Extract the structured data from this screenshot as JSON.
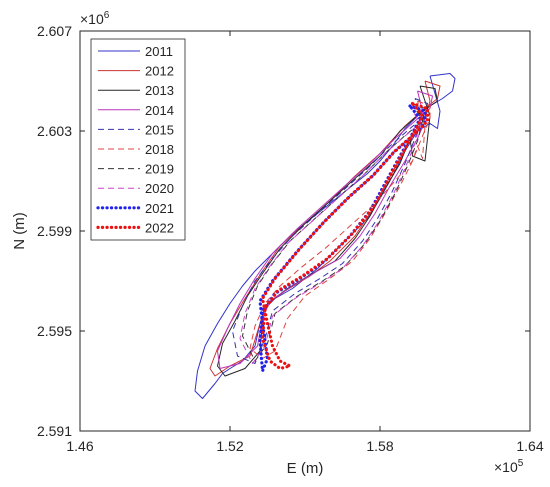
{
  "chart_data": {
    "type": "line",
    "xlabel": "E (m)",
    "ylabel": "N (m)",
    "xlim": [
      146000,
      164000
    ],
    "ylim": [
      2591000,
      2607000
    ],
    "x_ticks": [
      146000,
      152000,
      158000,
      164000
    ],
    "x_tick_labels": [
      "1.46",
      "1.52",
      "1.58",
      "1.64"
    ],
    "y_ticks": [
      2591000,
      2595000,
      2599000,
      2603000,
      2607000
    ],
    "y_tick_labels": [
      "2.591",
      "2.595",
      "2.599",
      "2.603",
      "2.607"
    ],
    "x_multiplier": "×10",
    "x_multiplier_exp": "5",
    "y_multiplier": "×10",
    "y_multiplier_exp": "6",
    "grid": false,
    "legend_position": "top-left",
    "series": [
      {
        "name": "2011",
        "color": "#3333cc",
        "style": "solid",
        "x": [
          160000,
          160800,
          161000,
          160900,
          160500,
          160000,
          159500,
          159000,
          158500,
          158000,
          157500,
          157000,
          156500,
          156000,
          155500,
          155000,
          154500,
          154000,
          153500,
          153000,
          152500,
          152000,
          151500,
          151000,
          150700,
          150600,
          150900,
          151400,
          151700,
          152000,
          152500,
          153000,
          153200,
          153400,
          153800,
          154500,
          155000,
          155500,
          156000,
          156500,
          157000,
          157500,
          158000,
          158500,
          159000,
          159500,
          160000,
          160300,
          160400,
          160000
        ],
        "y": [
          2605200,
          2605300,
          2605100,
          2604600,
          2604300,
          2604000,
          2603600,
          2603100,
          2602400,
          2601800,
          2601300,
          2600900,
          2600500,
          2600100,
          2599700,
          2599300,
          2598900,
          2598400,
          2597900,
          2597400,
          2596800,
          2596100,
          2595300,
          2594400,
          2593400,
          2592600,
          2592300,
          2592900,
          2593300,
          2593500,
          2593800,
          2594400,
          2595300,
          2595900,
          2596300,
          2596700,
          2597100,
          2597500,
          2598000,
          2598500,
          2599000,
          2599500,
          2600300,
          2601200,
          2602200,
          2603000,
          2603300,
          2603100,
          2603800,
          2605200
        ]
      },
      {
        "name": "2012",
        "color": "#cc3333",
        "style": "solid",
        "x": [
          159800,
          160400,
          160300,
          159800,
          159000,
          158000,
          157000,
          156000,
          155000,
          154000,
          153300,
          152600,
          152000,
          151500,
          151200,
          151400,
          152000,
          152800,
          153200,
          153400,
          154200,
          155200,
          156000,
          157000,
          157600,
          158200,
          158800,
          159300,
          159800,
          160000,
          159800
        ],
        "y": [
          2605000,
          2604800,
          2604300,
          2603900,
          2603200,
          2602100,
          2601200,
          2600200,
          2599300,
          2598400,
          2597400,
          2596300,
          2595300,
          2594300,
          2593500,
          2593200,
          2593600,
          2594000,
          2595300,
          2596000,
          2596600,
          2597200,
          2597800,
          2598800,
          2599700,
          2600800,
          2601900,
          2602900,
          2603500,
          2604200,
          2605000
        ]
      },
      {
        "name": "2013",
        "color": "#262626",
        "style": "solid",
        "x": [
          159600,
          160200,
          160300,
          159700,
          158800,
          158000,
          157000,
          156000,
          155000,
          154000,
          153300,
          152700,
          152200,
          151700,
          151500,
          151800,
          152600,
          153200,
          153300,
          153500,
          154300,
          155300,
          156200,
          157000,
          157600,
          158200,
          158800,
          159200,
          159300,
          159800,
          160000,
          159600
        ],
        "y": [
          2604800,
          2604700,
          2604200,
          2603800,
          2603000,
          2602000,
          2601100,
          2600200,
          2599300,
          2598300,
          2597300,
          2596400,
          2595400,
          2594500,
          2593600,
          2593200,
          2593500,
          2594200,
          2595400,
          2596100,
          2596700,
          2597300,
          2597800,
          2598700,
          2599600,
          2600700,
          2601700,
          2602700,
          2602000,
          2601800,
          2603600,
          2604800
        ]
      },
      {
        "name": "2014",
        "color": "#bb33bb",
        "style": "solid",
        "x": [
          159500,
          160100,
          160000,
          159400,
          158600,
          157700,
          156700,
          155700,
          154700,
          153700,
          153000,
          152400,
          151900,
          151500,
          151600,
          152400,
          153100,
          153300,
          153600,
          154500,
          155500,
          156400,
          157200,
          157800,
          158400,
          159000,
          159500,
          159800,
          159500
        ],
        "y": [
          2604600,
          2604400,
          2603900,
          2603400,
          2602700,
          2601800,
          2600900,
          2600000,
          2599100,
          2598100,
          2597100,
          2596100,
          2595100,
          2594200,
          2593500,
          2593700,
          2594400,
          2595500,
          2596200,
          2596800,
          2597400,
          2597900,
          2598800,
          2599700,
          2600800,
          2601800,
          2602700,
          2603400,
          2604600
        ]
      },
      {
        "name": "2015",
        "color": "#3333aa",
        "style": "dashed",
        "x": [
          159400,
          159900,
          159800,
          159200,
          158400,
          157500,
          156500,
          155500,
          154500,
          153700,
          153000,
          152500,
          152100,
          152300,
          153000,
          153400,
          153700,
          154600,
          155600,
          156500,
          157300,
          157900,
          158500,
          159000,
          159400,
          159700,
          159400
        ],
        "y": [
          2604300,
          2604100,
          2603600,
          2603100,
          2602400,
          2601500,
          2600600,
          2599700,
          2598800,
          2597900,
          2597000,
          2596000,
          2595000,
          2594000,
          2593700,
          2594700,
          2595800,
          2596500,
          2597100,
          2597700,
          2598600,
          2599500,
          2600600,
          2601700,
          2602700,
          2603500,
          2604300
        ]
      },
      {
        "name": "2018",
        "color": "#dd4444",
        "style": "dashed",
        "x": [
          159500,
          160000,
          160000,
          159700,
          159300,
          158600,
          157800,
          156800,
          155800,
          154800,
          154000,
          153400,
          153000,
          152800,
          153300,
          153800,
          154300,
          155000,
          156000,
          156900,
          157600,
          158200,
          158800,
          159300,
          159500,
          159700,
          159800,
          159500
        ],
        "y": [
          2604200,
          2604000,
          2603500,
          2602800,
          2601800,
          2601000,
          2600100,
          2599200,
          2598300,
          2597500,
          2596800,
          2596100,
          2595200,
          2594300,
          2593900,
          2594200,
          2595500,
          2596400,
          2597100,
          2597800,
          2598700,
          2599700,
          2600800,
          2601800,
          2602400,
          2601900,
          2603200,
          2604200
        ]
      },
      {
        "name": "2019",
        "color": "#333333",
        "style": "dashed",
        "x": [
          159300,
          159800,
          159700,
          159100,
          158300,
          157400,
          156400,
          155400,
          154400,
          153700,
          153100,
          152700,
          152500,
          153000,
          153500,
          153800,
          154700,
          155700,
          156600,
          157400,
          158000,
          158600,
          159100,
          159500,
          159700,
          159300
        ],
        "y": [
          2604100,
          2603900,
          2603400,
          2602900,
          2602200,
          2601300,
          2600400,
          2599500,
          2598600,
          2597700,
          2596800,
          2595800,
          2594800,
          2593800,
          2594500,
          2595700,
          2596400,
          2597000,
          2597600,
          2598500,
          2599400,
          2600500,
          2601600,
          2602600,
          2603400,
          2604100
        ]
      },
      {
        "name": "2020",
        "color": "#cc44cc",
        "style": "dashed",
        "x": [
          159200,
          159700,
          159600,
          159000,
          158200,
          157300,
          156300,
          155300,
          154300,
          153600,
          153000,
          152600,
          152400,
          152900,
          153400,
          153700,
          154600,
          155600,
          156500,
          157300,
          157900,
          158500,
          159000,
          159400,
          159600,
          159200
        ],
        "y": [
          2604000,
          2603800,
          2603300,
          2602800,
          2602100,
          2601200,
          2600300,
          2599400,
          2598500,
          2597600,
          2596700,
          2595700,
          2594700,
          2593700,
          2594400,
          2595600,
          2596300,
          2596900,
          2597500,
          2598400,
          2599300,
          2600400,
          2601500,
          2602500,
          2603300,
          2604000
        ]
      },
      {
        "name": "2021",
        "color": "#2222ee",
        "style": "dotted",
        "x": [
          159200,
          159800,
          159800,
          159300,
          158500,
          157700,
          156700,
          155700,
          154700,
          153700,
          153200,
          153300,
          153400,
          153500,
          153300,
          153200,
          153300,
          153800,
          154800,
          155800,
          156800,
          157600,
          158200,
          158800,
          159300,
          159600,
          159200
        ],
        "y": [
          2604000,
          2603800,
          2603300,
          2602800,
          2602100,
          2601200,
          2600300,
          2599300,
          2598200,
          2597000,
          2596200,
          2595300,
          2594600,
          2593900,
          2593400,
          2594600,
          2595800,
          2596500,
          2597100,
          2597800,
          2598800,
          2599800,
          2600900,
          2602000,
          2602900,
          2603500,
          2604000
        ]
      },
      {
        "name": "2022",
        "color": "#ee1111",
        "style": "dotted",
        "x": [
          159300,
          159900,
          159900,
          159400,
          158600,
          157800,
          156800,
          155800,
          154800,
          153800,
          153300,
          153500,
          153700,
          154000,
          154400,
          154000,
          153600,
          153300,
          153400,
          153900,
          154900,
          155900,
          156900,
          157700,
          158300,
          158900,
          159400,
          159700,
          159300
        ],
        "y": [
          2604100,
          2603900,
          2603400,
          2602900,
          2602200,
          2601300,
          2600400,
          2599400,
          2598300,
          2597100,
          2596300,
          2595300,
          2594400,
          2593800,
          2593600,
          2593500,
          2593800,
          2594700,
          2595900,
          2596600,
          2597200,
          2597900,
          2598900,
          2599900,
          2601000,
          2602100,
          2603000,
          2603600,
          2604100
        ]
      }
    ]
  }
}
